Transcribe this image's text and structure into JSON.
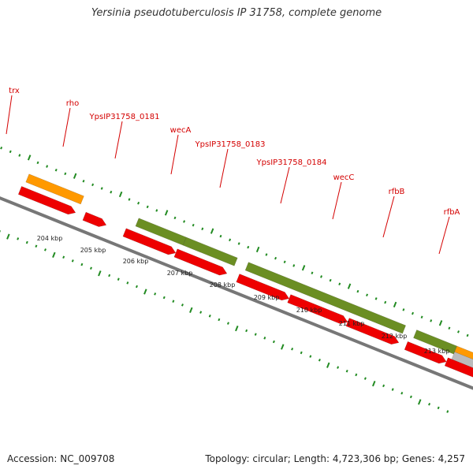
{
  "title": "Yersinia pseudotuberculosis IP 31758, complete genome",
  "footer": {
    "accession": "Accession: NC_009708",
    "summary": "Topology: circular; Length: 4,723,306 bp; Genes: 4,257"
  },
  "colors": {
    "cds": "#ee0000",
    "green_feature": "#6b8e23",
    "orange_feature": "#ff9900",
    "cyan_feature": "#00d8e8",
    "gray_feature": "#bbbbbb",
    "label": "#d40000",
    "tick": "#228b22",
    "backbone": "#777777"
  },
  "gene_labels": [
    "trx",
    "rho",
    "YpsIP31758_0181",
    "wecA",
    "YpsIP31758_0183",
    "YpsIP31758_0184",
    "wecC",
    "rfbB",
    "rfbA"
  ],
  "kbp_labels": [
    "204 kbp",
    "205 kbp",
    "206 kbp",
    "207 kbp",
    "208 kbp",
    "209 kbp",
    "210 kbp",
    "211 kbp",
    "212 kbp",
    "213 kbp"
  ]
}
